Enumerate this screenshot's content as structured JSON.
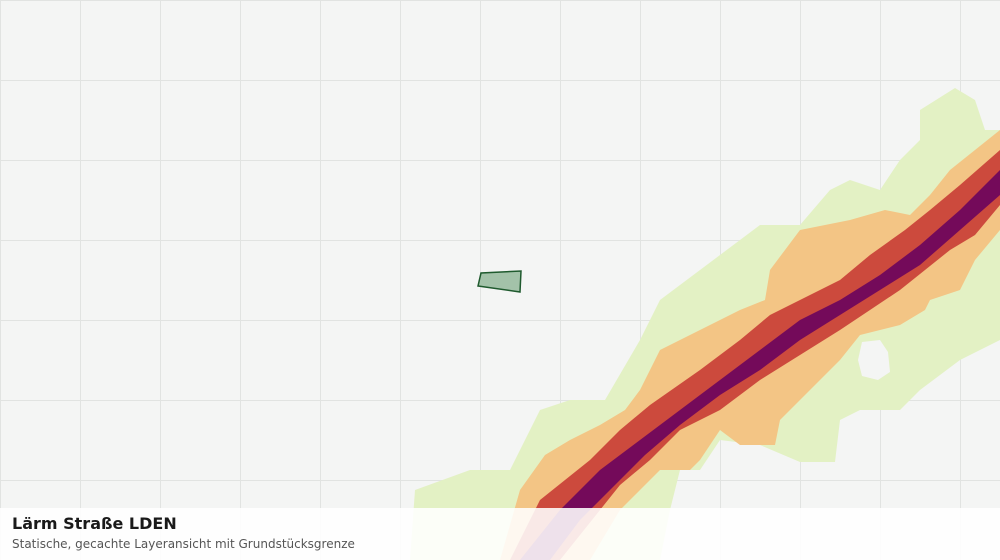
{
  "info_panel": {
    "title": "Lärm Straße LDEN",
    "subtitle": "Statische, gecachte Layeransicht mit Grundstücksgrenze"
  }
}
